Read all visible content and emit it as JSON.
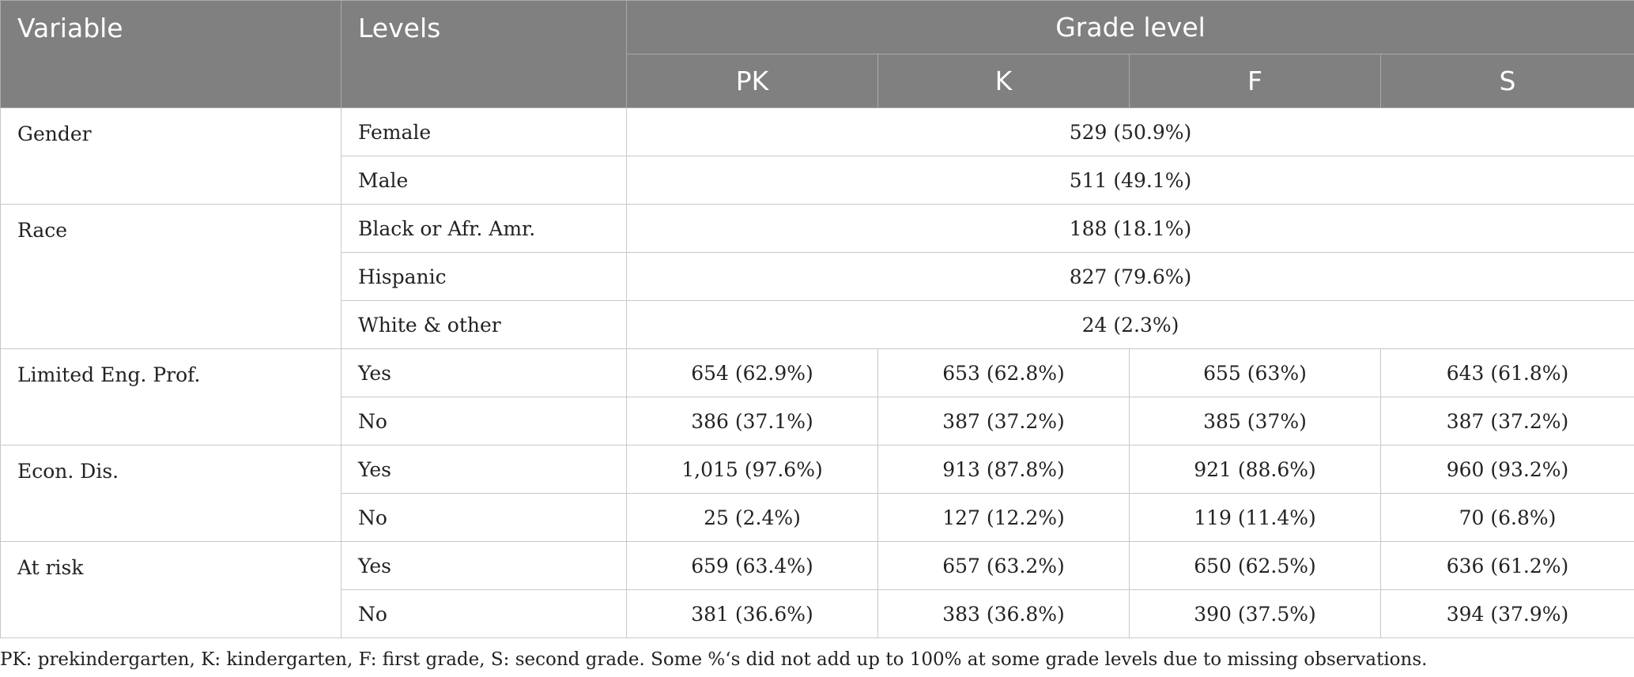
{
  "header": {
    "variable": "Variable",
    "levels": "Levels",
    "grade_level": "Grade level",
    "grades": [
      "PK",
      "K",
      "F",
      "S"
    ]
  },
  "groups": [
    {
      "variable": "Gender",
      "rows": [
        {
          "level": "Female",
          "overall": "529 (50.9%)"
        },
        {
          "level": "Male",
          "overall": "511 (49.1%)"
        }
      ]
    },
    {
      "variable": "Race",
      "rows": [
        {
          "level": "Black or Afr. Amr.",
          "overall": "188 (18.1%)"
        },
        {
          "level": "Hispanic",
          "overall": "827 (79.6%)"
        },
        {
          "level": "White & other",
          "overall": "24 (2.3%)"
        }
      ]
    },
    {
      "variable": "Limited Eng. Prof.",
      "rows": [
        {
          "level": "Yes",
          "values": [
            "654 (62.9%)",
            "653 (62.8%)",
            "655 (63%)",
            "643 (61.8%)"
          ]
        },
        {
          "level": "No",
          "values": [
            "386 (37.1%)",
            "387 (37.2%)",
            "385 (37%)",
            "387 (37.2%)"
          ]
        }
      ]
    },
    {
      "variable": "Econ. Dis.",
      "rows": [
        {
          "level": "Yes",
          "values": [
            "1,015 (97.6%)",
            "913 (87.8%)",
            "921 (88.6%)",
            "960 (93.2%)"
          ]
        },
        {
          "level": "No",
          "values": [
            "25 (2.4%)",
            "127 (12.2%)",
            "119 (11.4%)",
            "70 (6.8%)"
          ]
        }
      ]
    },
    {
      "variable": "At risk",
      "rows": [
        {
          "level": "Yes",
          "values": [
            "659 (63.4%)",
            "657 (63.2%)",
            "650 (62.5%)",
            "636 (61.2%)"
          ]
        },
        {
          "level": "No",
          "values": [
            "381 (36.6%)",
            "383 (36.8%)",
            "390 (37.5%)",
            "394 (37.9%)"
          ]
        }
      ]
    }
  ],
  "footnote": "PK: prekindergarten, K: kindergarten, F: first grade, S: second grade. Some %‘s did not add up to 100% at some grade levels due to missing observations.",
  "colors": {
    "header_bg": "#808080",
    "header_text": "#ffffff",
    "grid": "#c8c8c8"
  }
}
